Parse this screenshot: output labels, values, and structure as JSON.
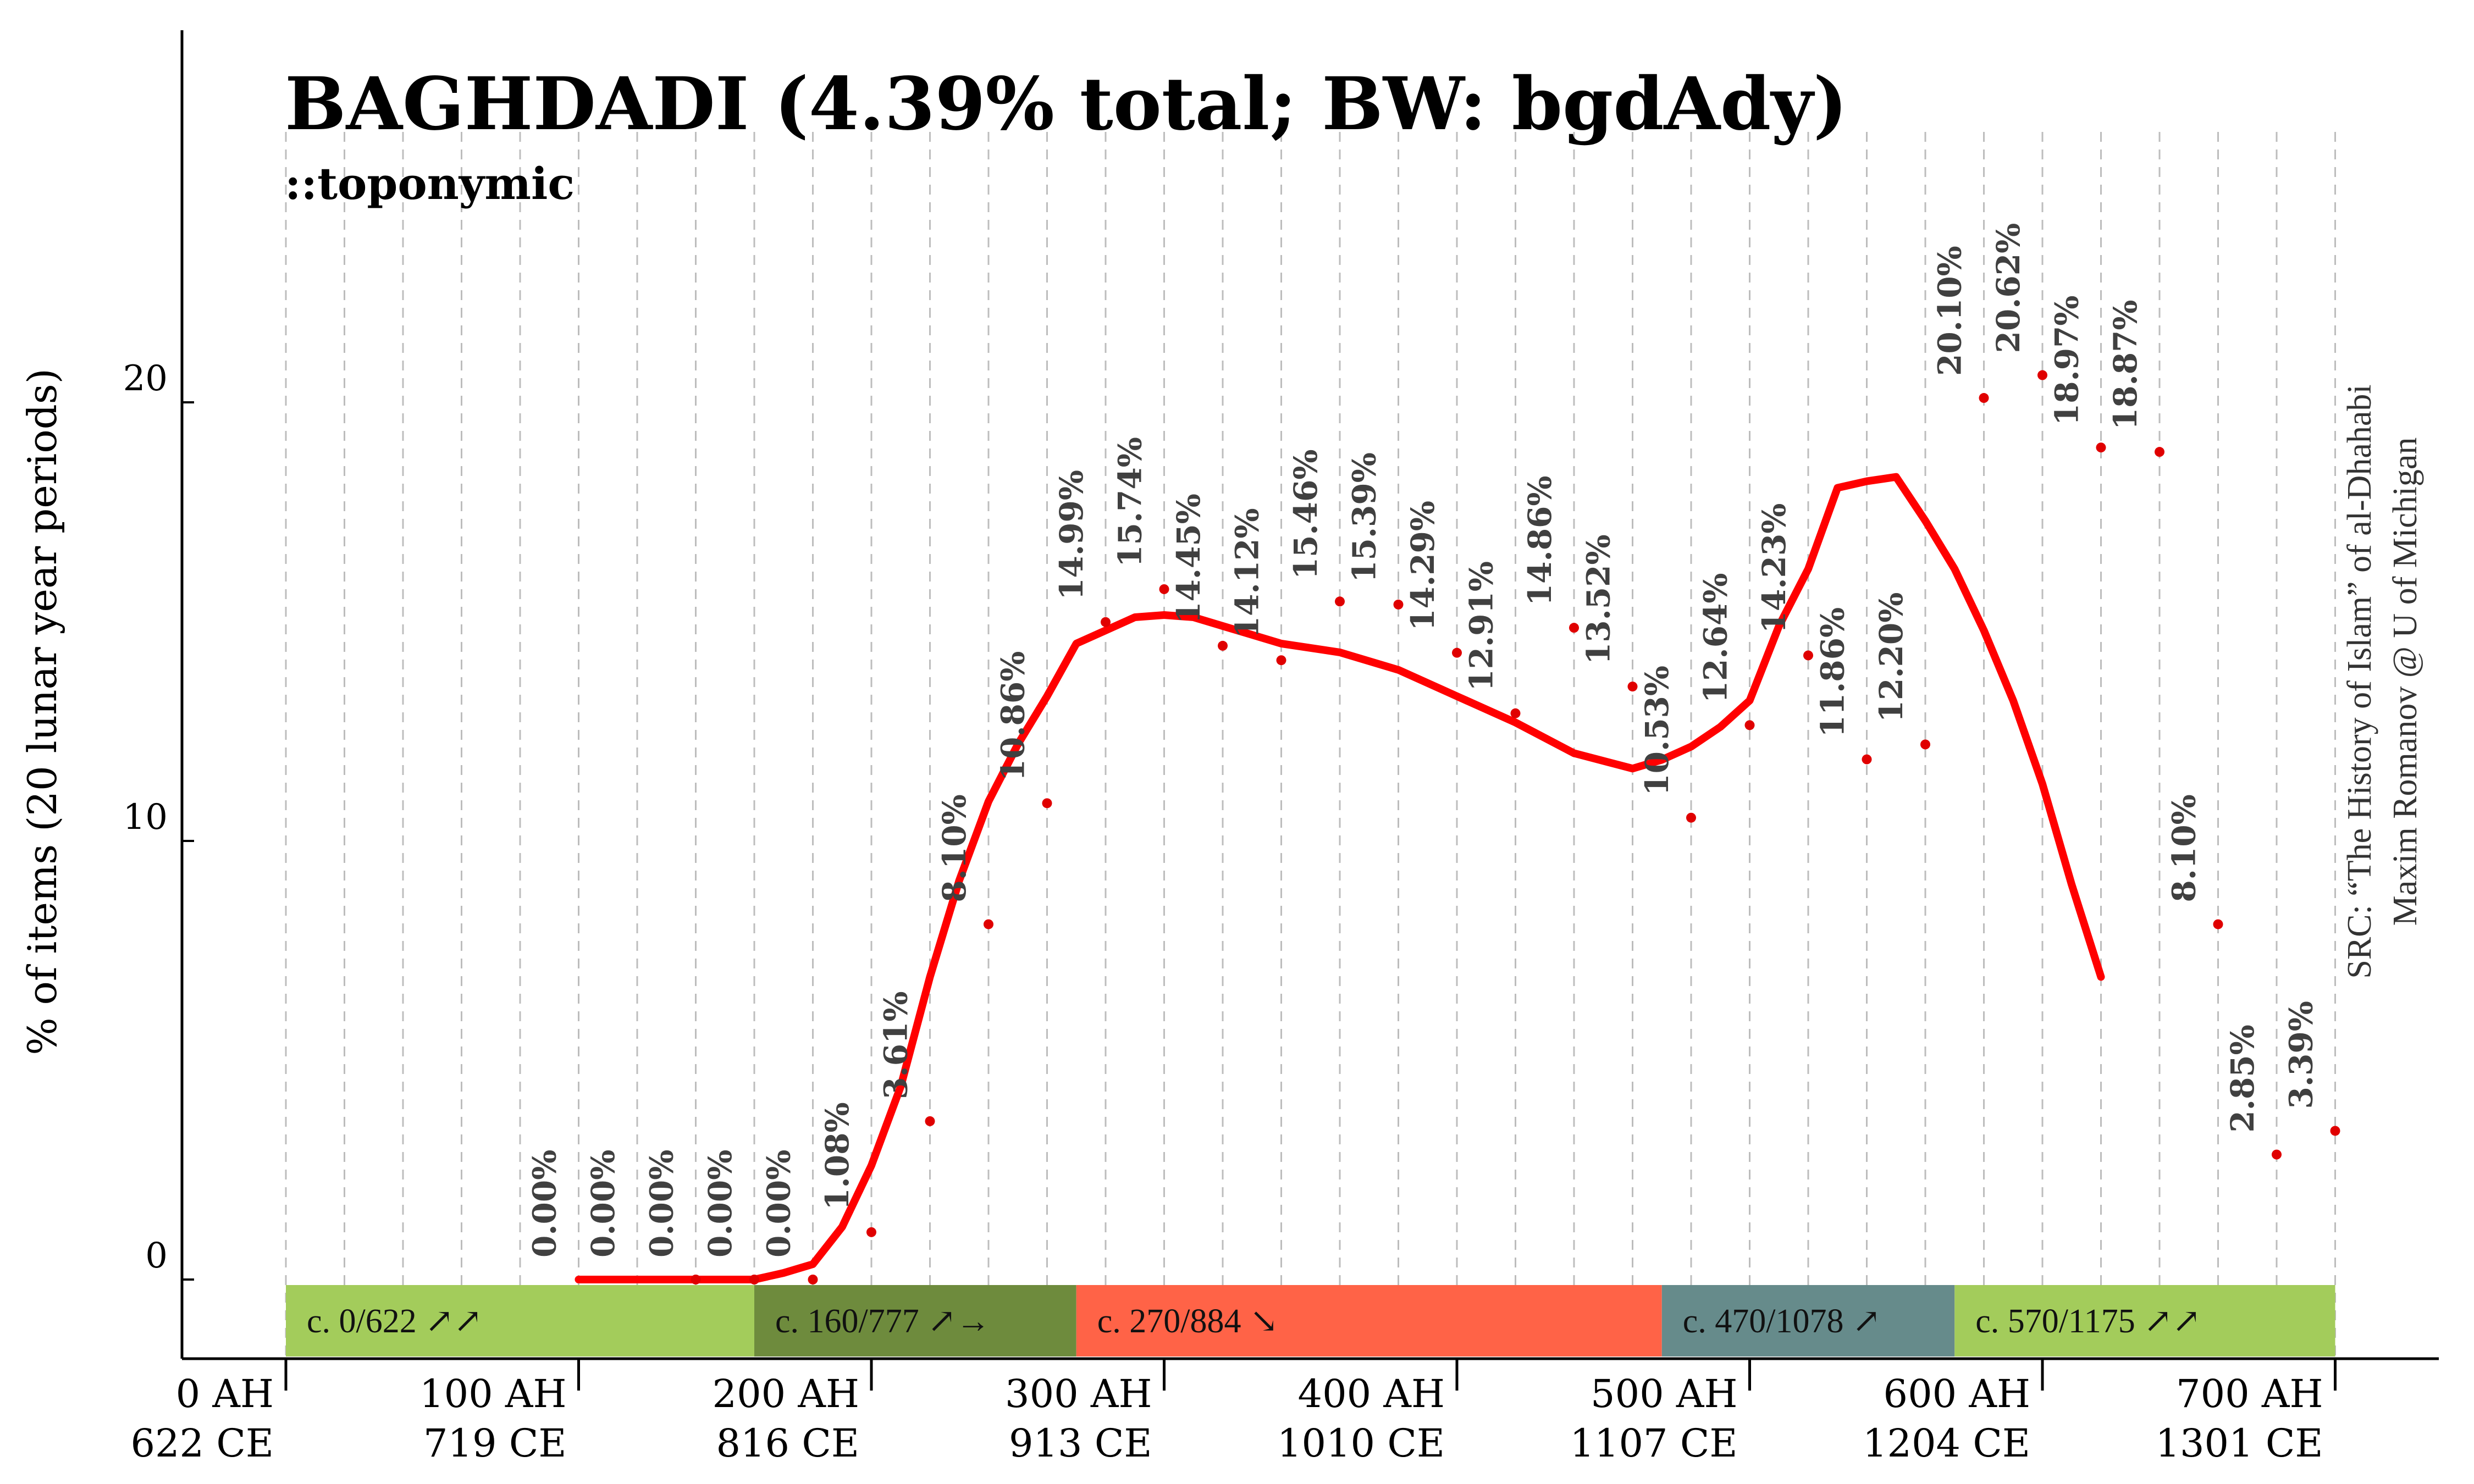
{
  "title": "BAGHDADI (4.39% total; BW: bgdAdy)",
  "subtitle": "::toponymic",
  "source_credit": {
    "line1": "SRC: “The History of Islam” of al-Dhahabi",
    "line2": "Maxim Romanov @ U of Michigan"
  },
  "colors": {
    "line": "#ff0000",
    "points": "#e00000",
    "labels": "#404040",
    "grid": "#bdbdbd"
  },
  "chart_data": {
    "type": "line",
    "title": "BAGHDADI (4.39% total; BW: bgdAdy)",
    "subtitle": "::toponymic",
    "xlabel": "",
    "ylabel": "% of items (20 lunar year periods)",
    "xlim": [
      0,
      700
    ],
    "ylim": [
      0,
      20
    ],
    "grid": true,
    "yticks": [
      {
        "value": 0,
        "label": "0"
      },
      {
        "value": 10,
        "label": "10"
      },
      {
        "value": 20,
        "label": "20"
      }
    ],
    "xticks": [
      {
        "value": 0,
        "ah": "0 AH",
        "ce": "622 CE"
      },
      {
        "value": 100,
        "ah": "100 AH",
        "ce": "719 CE"
      },
      {
        "value": 200,
        "ah": "200 AH",
        "ce": "816 CE"
      },
      {
        "value": 300,
        "ah": "300 AH",
        "ce": "913 CE"
      },
      {
        "value": 400,
        "ah": "400 AH",
        "ce": "1010 CE"
      },
      {
        "value": 500,
        "ah": "500 AH",
        "ce": "1107 CE"
      },
      {
        "value": 600,
        "ah": "600 AH",
        "ce": "1204 CE"
      },
      {
        "value": 700,
        "ah": "700 AH",
        "ce": "1301 CE"
      }
    ],
    "points": [
      {
        "x": 140,
        "y": 0.0,
        "label": "0.00%"
      },
      {
        "x": 160,
        "y": 0.0,
        "label": "0.00%"
      },
      {
        "x": 180,
        "y": 0.0,
        "label": "0.00%"
      },
      {
        "x": 200,
        "y": 1.08,
        "label": "1.08%"
      },
      {
        "x": 220,
        "y": 3.61,
        "label": "3.61%"
      },
      {
        "x": 240,
        "y": 8.1,
        "label": "8.10%"
      },
      {
        "x": 260,
        "y": 10.86,
        "label": "10.86%"
      },
      {
        "x": 280,
        "y": 14.99,
        "label": "14.99%"
      },
      {
        "x": 300,
        "y": 15.74,
        "label": "15.74%"
      },
      {
        "x": 320,
        "y": 14.45,
        "label": "14.45%"
      },
      {
        "x": 340,
        "y": 14.12,
        "label": "14.12%"
      },
      {
        "x": 360,
        "y": 15.46,
        "label": "15.46%"
      },
      {
        "x": 380,
        "y": 15.39,
        "label": "15.39%"
      },
      {
        "x": 400,
        "y": 14.29,
        "label": "14.29%"
      },
      {
        "x": 420,
        "y": 12.91,
        "label": "12.91%"
      },
      {
        "x": 440,
        "y": 14.86,
        "label": "14.86%"
      },
      {
        "x": 460,
        "y": 13.52,
        "label": "13.52%"
      },
      {
        "x": 480,
        "y": 10.53,
        "label": "10.53%"
      },
      {
        "x": 500,
        "y": 12.64,
        "label": "12.64%"
      },
      {
        "x": 520,
        "y": 14.23,
        "label": "14.23%"
      },
      {
        "x": 540,
        "y": 11.86,
        "label": "11.86%"
      },
      {
        "x": 560,
        "y": 12.2,
        "label": "12.20%"
      },
      {
        "x": 580,
        "y": 20.1,
        "label": "20.10%"
      },
      {
        "x": 600,
        "y": 20.62,
        "label": "20.62%"
      },
      {
        "x": 620,
        "y": 18.97,
        "label": "18.97%"
      },
      {
        "x": 640,
        "y": 18.87,
        "label": "18.87%"
      },
      {
        "x": 660,
        "y": 8.1,
        "label": "8.10%"
      },
      {
        "x": 680,
        "y": 2.85,
        "label": "2.85%"
      },
      {
        "x": 700,
        "y": 3.39,
        "label": "3.39%"
      }
    ],
    "zero_labels_extra": [
      {
        "x": 100,
        "label": "0.00%"
      },
      {
        "x": 120,
        "label": "0.00%"
      }
    ],
    "smoothed_line": [
      {
        "x": 100,
        "y": 0.0
      },
      {
        "x": 120,
        "y": 0.0
      },
      {
        "x": 140,
        "y": 0.0
      },
      {
        "x": 160,
        "y": 0.0
      },
      {
        "x": 170,
        "y": 0.15
      },
      {
        "x": 180,
        "y": 0.35
      },
      {
        "x": 190,
        "y": 1.2
      },
      {
        "x": 200,
        "y": 2.6
      },
      {
        "x": 210,
        "y": 4.4
      },
      {
        "x": 220,
        "y": 6.9
      },
      {
        "x": 230,
        "y": 9.1
      },
      {
        "x": 240,
        "y": 10.9
      },
      {
        "x": 250,
        "y": 12.2
      },
      {
        "x": 260,
        "y": 13.3
      },
      {
        "x": 270,
        "y": 14.5
      },
      {
        "x": 280,
        "y": 14.8
      },
      {
        "x": 290,
        "y": 15.1
      },
      {
        "x": 300,
        "y": 15.15
      },
      {
        "x": 310,
        "y": 15.1
      },
      {
        "x": 320,
        "y": 14.9
      },
      {
        "x": 340,
        "y": 14.5
      },
      {
        "x": 360,
        "y": 14.3
      },
      {
        "x": 380,
        "y": 13.9
      },
      {
        "x": 400,
        "y": 13.3
      },
      {
        "x": 420,
        "y": 12.7
      },
      {
        "x": 440,
        "y": 12.0
      },
      {
        "x": 460,
        "y": 11.65
      },
      {
        "x": 470,
        "y": 11.85
      },
      {
        "x": 480,
        "y": 12.15
      },
      {
        "x": 490,
        "y": 12.6
      },
      {
        "x": 500,
        "y": 13.2
      },
      {
        "x": 510,
        "y": 14.9
      },
      {
        "x": 520,
        "y": 16.2
      },
      {
        "x": 530,
        "y": 18.05
      },
      {
        "x": 540,
        "y": 18.2
      },
      {
        "x": 550,
        "y": 18.3
      },
      {
        "x": 560,
        "y": 17.3
      },
      {
        "x": 570,
        "y": 16.2
      },
      {
        "x": 580,
        "y": 14.8
      },
      {
        "x": 590,
        "y": 13.2
      },
      {
        "x": 600,
        "y": 11.3
      },
      {
        "x": 610,
        "y": 9.0
      },
      {
        "x": 620,
        "y": 6.9
      }
    ],
    "periods": [
      {
        "start": 0,
        "end": 160,
        "label": "c. 0/622 ↗↗",
        "color": "#a3cc5b"
      },
      {
        "start": 160,
        "end": 270,
        "label": "c. 160/777 ↗→",
        "color": "#6e8b3d"
      },
      {
        "start": 270,
        "end": 470,
        "label": "c. 270/884 ↘",
        "color": "#ff6347"
      },
      {
        "start": 470,
        "end": 570,
        "label": "c. 470/1078 ↗",
        "color": "#668b8b"
      },
      {
        "start": 570,
        "end": 700,
        "label": "c. 570/1175 ↗↗",
        "color": "#a3cc5b"
      }
    ]
  }
}
